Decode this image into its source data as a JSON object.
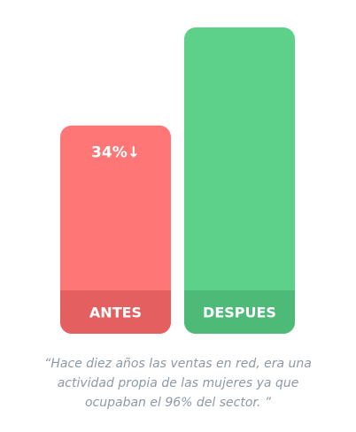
{
  "chart_data": {
    "type": "bar",
    "categories": [
      "ANTES",
      "DESPUES"
    ],
    "values": [
      68,
      100
    ],
    "colors": [
      "#ff7676",
      "#5dd18a"
    ],
    "band_colors": [
      "#e35f60",
      "#4dbb77"
    ],
    "ylim": [
      0,
      100
    ],
    "annotations": [
      {
        "category": 0,
        "text": "34%↓"
      }
    ]
  },
  "quote": {
    "lines": [
      "“Hace diez años las ventas en red, era una",
      "actividad propia de las mujeres ya que",
      "ocupaban el 96% del sector. ”"
    ]
  }
}
